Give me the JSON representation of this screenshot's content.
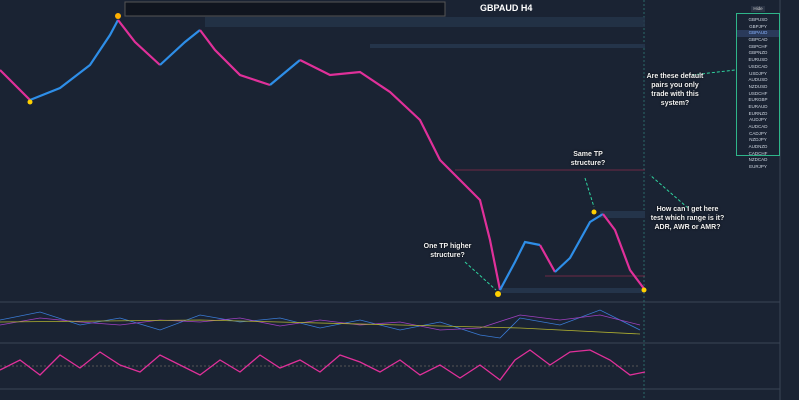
{
  "header": {
    "title": "GBPAUD H4"
  },
  "symbol_panel": {
    "button": "Hide",
    "symbols": [
      "GBPUSD",
      "GBPJPY",
      "GBPAUD",
      "GBPCAD",
      "GBPCHF",
      "GBPNZD",
      "EURUSD",
      "USDCAD",
      "USDJPY",
      "AUDUSD",
      "NZDUSD",
      "USDCHF",
      "EURGBP",
      "EURAUD",
      "EURNZD",
      "AUDJPY",
      "AUDCAD",
      "CADJPY",
      "NZDJPY",
      "AUDNZD",
      "CADCHF",
      "NZDCAD",
      "EURJPY"
    ]
  },
  "annotations": {
    "pairs_question": "Are these default pairs you only trade with this system?",
    "same_tp": "Same TP structure?",
    "range_question": "How can I get here test which range is it? ADR, AWR or AMR?",
    "higher_tp": "One TP higher structure?"
  }
}
